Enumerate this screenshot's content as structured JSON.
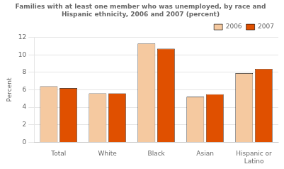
{
  "chart_data": {
    "type": "bar",
    "title": "Families with at least one member who was unemployed, by race and\nHispanic ethnicity, 2006 and 2007 (percent)",
    "ylabel": "Percent",
    "categories": [
      "Total",
      "White",
      "Black",
      "Asian",
      "Hispanic or\nLatino"
    ],
    "series": [
      {
        "name": "2006",
        "color": "#F5C9A0",
        "values": [
          6.4,
          5.6,
          11.3,
          5.2,
          7.9
        ]
      },
      {
        "name": "2007",
        "color": "#E05000",
        "values": [
          6.2,
          5.6,
          10.7,
          5.5,
          8.4
        ]
      }
    ],
    "ylim": [
      0,
      12
    ],
    "yticks": [
      0,
      2,
      4,
      6,
      8,
      10,
      12
    ],
    "grid": true,
    "legend": "upper right"
  }
}
